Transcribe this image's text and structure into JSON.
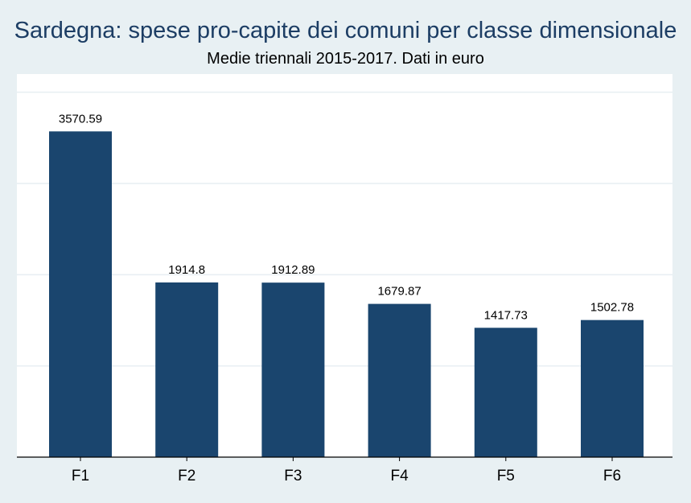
{
  "chart_data": {
    "type": "bar",
    "title": "Sardegna: spese pro-capite dei comuni per classe dimensionale",
    "subtitle": "Medie triennali 2015-2017. Dati in euro",
    "categories": [
      "F1",
      "F2",
      "F3",
      "F4",
      "F5",
      "F6"
    ],
    "values": [
      3570.59,
      1914.8,
      1912.89,
      1679.87,
      1417.73,
      1502.78
    ],
    "value_labels": [
      "3570.59",
      "1914.8",
      "1912.89",
      "1679.87",
      "1417.73",
      "1502.78"
    ],
    "ylim": [
      0,
      4000
    ],
    "gridlines": [
      1000,
      2000,
      3000,
      4000
    ],
    "grid": true,
    "legend": "none",
    "colors": {
      "bar": "#1a456e",
      "background": "#e8f0f3",
      "plot_background": "#ffffff",
      "grid": "#e9eff3",
      "title": "#1c3d64"
    }
  }
}
